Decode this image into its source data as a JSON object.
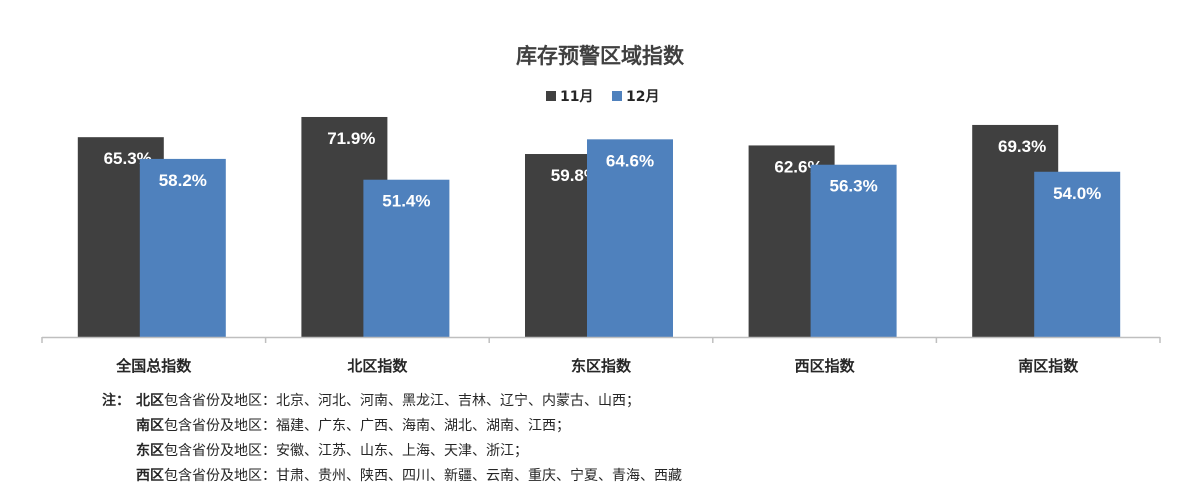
{
  "chart_data": {
    "type": "bar",
    "title": "库存预警区域指数",
    "categories": [
      "全国总指数",
      "北区指数",
      "东区指数",
      "西区指数",
      "南区指数"
    ],
    "series": [
      {
        "name": "11月",
        "color": "#404040",
        "values": [
          65.3,
          71.9,
          59.8,
          62.6,
          69.3
        ]
      },
      {
        "name": "12月",
        "color": "#4f81bd",
        "values": [
          58.2,
          51.4,
          64.6,
          56.3,
          54.0
        ]
      }
    ],
    "value_suffix": "%",
    "ylim": [
      0,
      75
    ],
    "grid": false,
    "legend": "top-center"
  },
  "notes": {
    "prefix": "注：",
    "lines": [
      {
        "region": "北区",
        "text": "包含省份及地区：北京、河北、河南、黑龙江、吉林、辽宁、内蒙古、山西；"
      },
      {
        "region": "南区",
        "text": "包含省份及地区：福建、广东、广西、海南、湖北、湖南、江西；"
      },
      {
        "region": "东区",
        "text": "包含省份及地区：安徽、江苏、山东、上海、天津、浙江；"
      },
      {
        "region": "西区",
        "text": "包含省份及地区：甘肃、贵州、陕西、四川、新疆、云南、重庆、宁夏、青海、西藏"
      }
    ]
  }
}
